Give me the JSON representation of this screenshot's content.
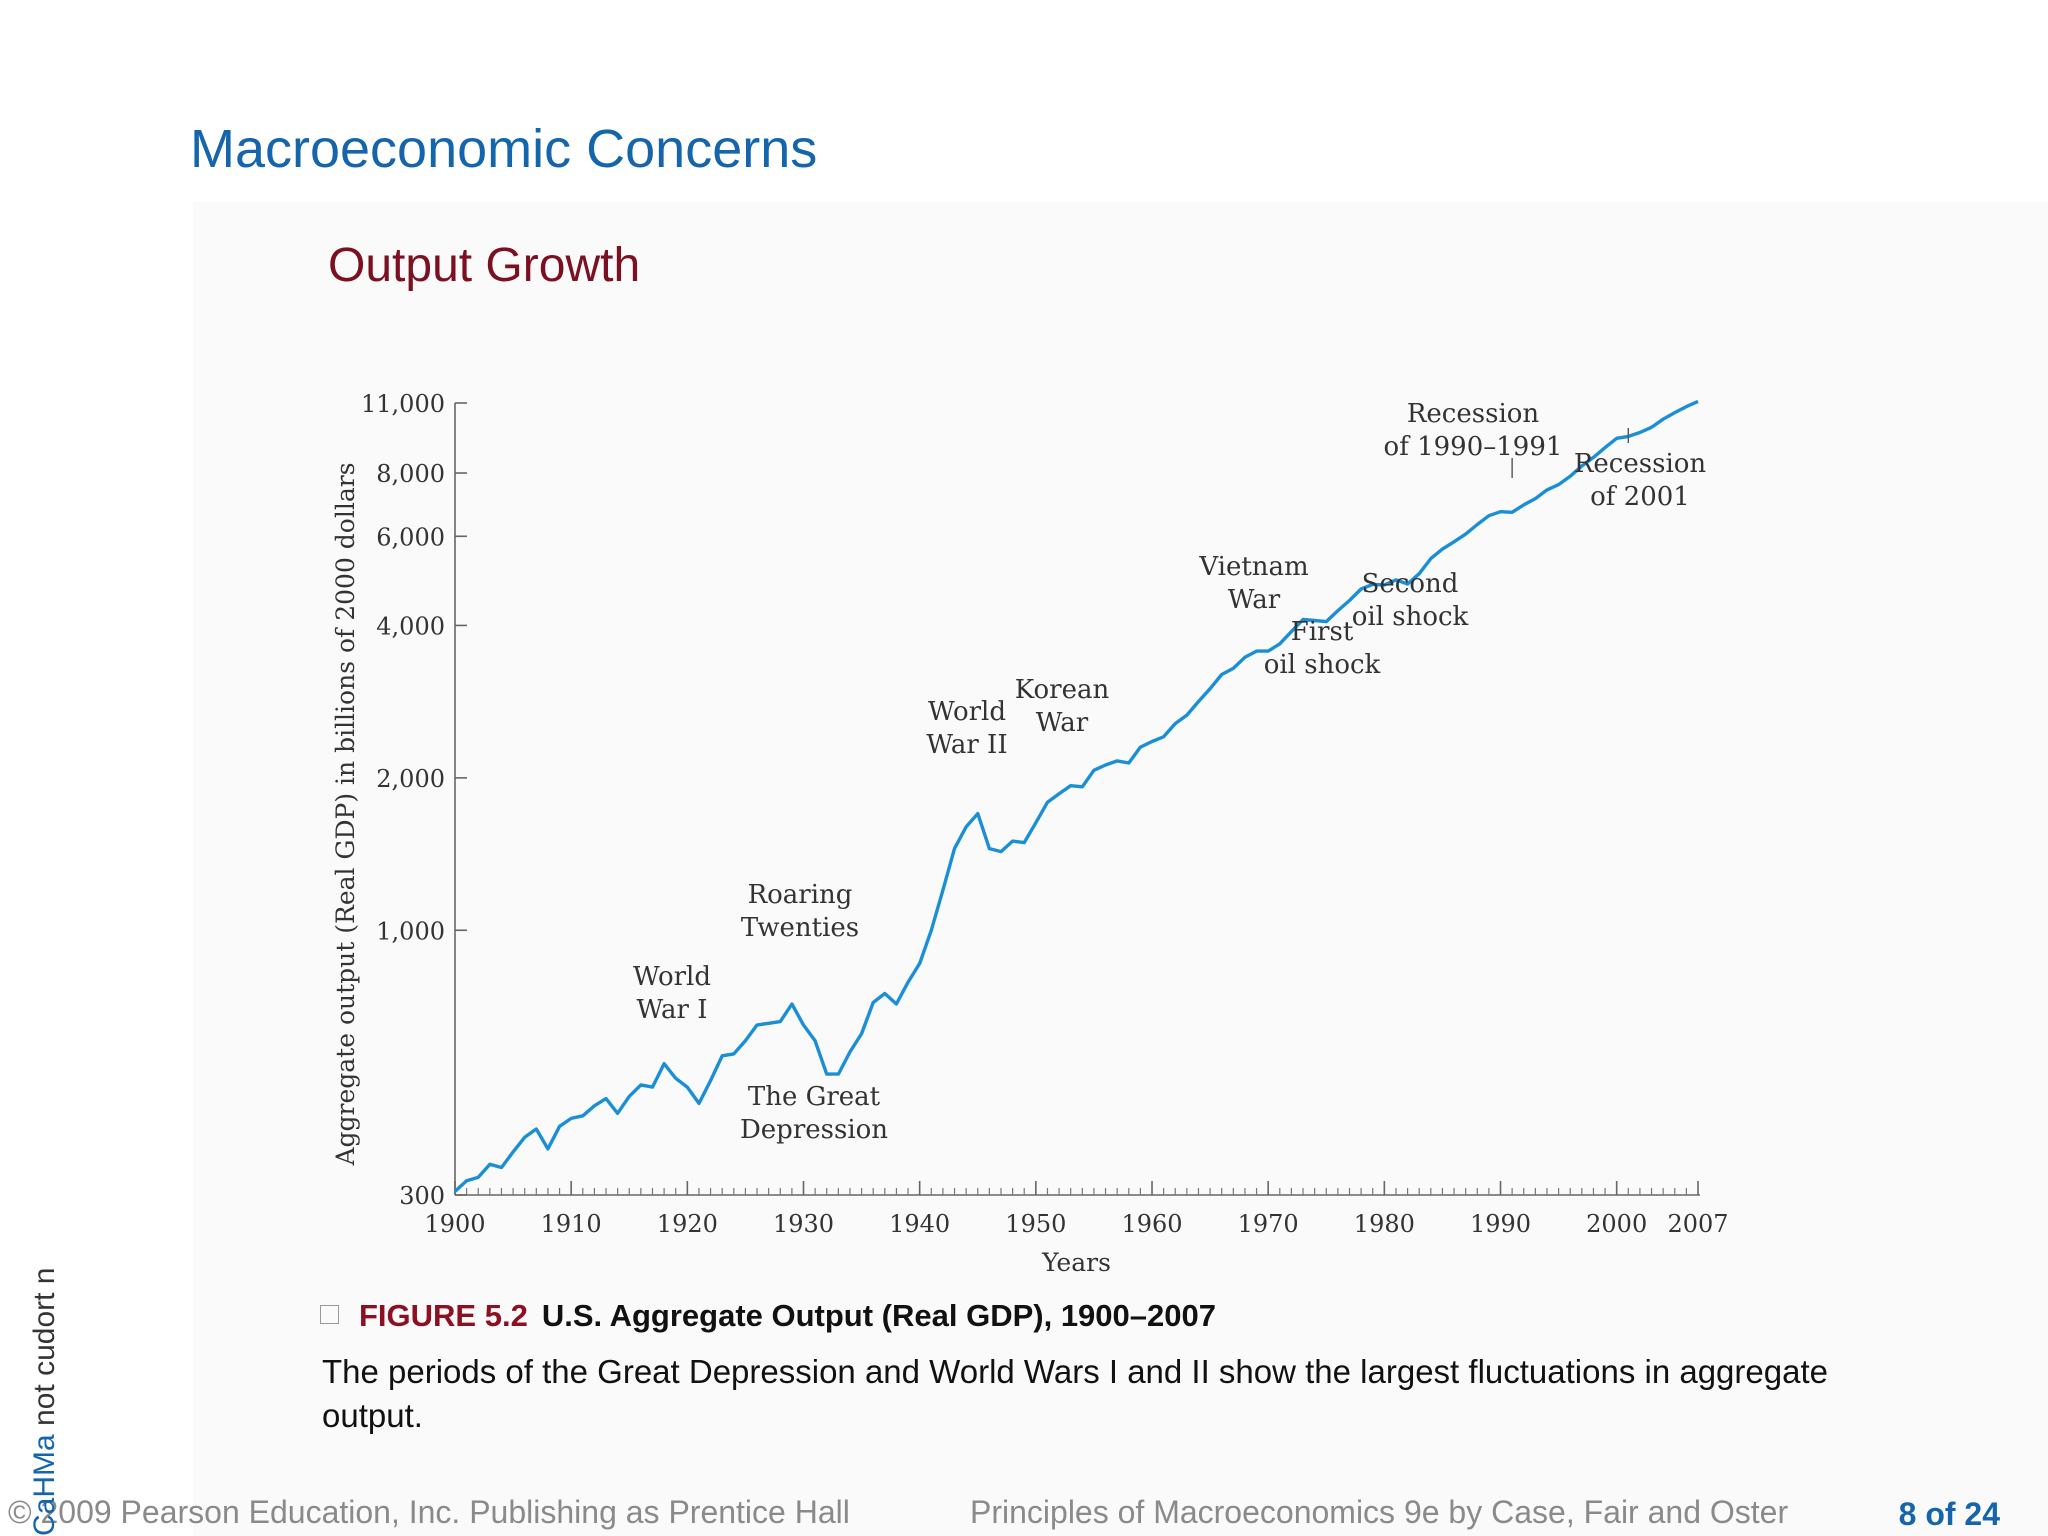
{
  "slide": {
    "title": "Macroeconomic Concerns",
    "subtitle": "Output Growth"
  },
  "colors": {
    "title": "#1565ad",
    "subtitle": "#7b1020",
    "line": "#1a8fd6",
    "figure_number": "#8b1022"
  },
  "chart_data": {
    "type": "line",
    "xlabel": "Years",
    "ylabel": "Aggregate output (Real GDP) in billions of 2000 dollars",
    "yscale": "log",
    "xlim": [
      1900,
      2007
    ],
    "ylim": [
      300,
      11000
    ],
    "xticks": [
      1900,
      1910,
      1920,
      1930,
      1940,
      1950,
      1960,
      1970,
      1980,
      1990,
      2000,
      2007
    ],
    "yticks": [
      300,
      1000,
      2000,
      4000,
      6000,
      8000,
      11000
    ],
    "ytick_labels": [
      "300",
      "1,000",
      "2,000",
      "4,000",
      "6,000",
      "8,000",
      "11,000"
    ],
    "grid": false,
    "series": [
      {
        "x": [
          1900,
          1901,
          1902,
          1903,
          1904,
          1905,
          1906,
          1907,
          1908,
          1909,
          1910,
          1911,
          1912,
          1913,
          1914,
          1915,
          1916,
          1917,
          1918,
          1919,
          1920,
          1921,
          1922,
          1923,
          1924,
          1925,
          1926,
          1927,
          1928,
          1929,
          1930,
          1931,
          1932,
          1933,
          1934,
          1935,
          1936,
          1937,
          1938,
          1939,
          1940,
          1941,
          1942,
          1943,
          1944,
          1945,
          1946,
          1947,
          1948,
          1949,
          1950,
          1951,
          1952,
          1953,
          1954,
          1955,
          1956,
          1957,
          1958,
          1959,
          1960,
          1961,
          1962,
          1963,
          1964,
          1965,
          1966,
          1967,
          1968,
          1969,
          1970,
          1971,
          1972,
          1973,
          1974,
          1975,
          1976,
          1977,
          1978,
          1979,
          1980,
          1981,
          1982,
          1983,
          1984,
          1985,
          1986,
          1987,
          1988,
          1989,
          1990,
          1991,
          1992,
          1993,
          1994,
          1995,
          1996,
          1997,
          1998,
          1999,
          2000,
          2001,
          2002,
          2003,
          2004,
          2005,
          2006,
          2007
        ],
        "y": [
          305,
          320,
          325,
          345,
          340,
          365,
          390,
          405,
          370,
          410,
          425,
          430,
          450,
          465,
          435,
          470,
          495,
          490,
          545,
          510,
          490,
          455,
          505,
          565,
          570,
          605,
          650,
          655,
          660,
          715,
          650,
          605,
          520,
          520,
          575,
          625,
          720,
          750,
          715,
          790,
          860,
          1000,
          1200,
          1450,
          1600,
          1700,
          1450,
          1430,
          1500,
          1490,
          1630,
          1790,
          1860,
          1930,
          1920,
          2070,
          2120,
          2160,
          2140,
          2300,
          2360,
          2410,
          2560,
          2660,
          2830,
          3000,
          3200,
          3290,
          3460,
          3560,
          3560,
          3680,
          3890,
          4110,
          4090,
          4070,
          4280,
          4480,
          4720,
          4820,
          4810,
          4920,
          4830,
          5060,
          5420,
          5660,
          5850,
          6060,
          6330,
          6590,
          6710,
          6690,
          6920,
          7120,
          7410,
          7590,
          7880,
          8260,
          8590,
          8980,
          9370,
          9450,
          9620,
          9850,
          10220,
          10530,
          10820,
          11080
        ]
      }
    ],
    "annotations": [
      {
        "lines": [
          "World",
          "War I"
        ]
      },
      {
        "lines": [
          "Roaring",
          "Twenties"
        ]
      },
      {
        "lines": [
          "The Great",
          "Depression"
        ]
      },
      {
        "lines": [
          "World",
          "War II"
        ]
      },
      {
        "lines": [
          "Korean",
          "War"
        ]
      },
      {
        "lines": [
          "Vietnam",
          "War"
        ]
      },
      {
        "lines": [
          "First",
          "oil shock"
        ]
      },
      {
        "lines": [
          "Second",
          "oil shock"
        ]
      },
      {
        "lines": [
          "Recession",
          "of 1990–1991"
        ]
      },
      {
        "lines": [
          "Recession",
          "of 2001"
        ]
      }
    ]
  },
  "caption": {
    "figure_number": "FIGURE 5.2",
    "figure_title": "U.S. Aggregate Output (Real GDP), 1900–2007",
    "text": "The periods of the Great Depression and World Wars I and II show the largest fluctuations in aggregate output."
  },
  "footer": {
    "copyright": "© 2009 Pearson Education, Inc. Publishing as Prentice Hall",
    "book": "Principles of Macroeconomics 9e by Case, Fair and Oster",
    "page": "8 of 24"
  },
  "side_notice": {
    "brand": "CaHMa",
    "text": "  not cudort n"
  }
}
